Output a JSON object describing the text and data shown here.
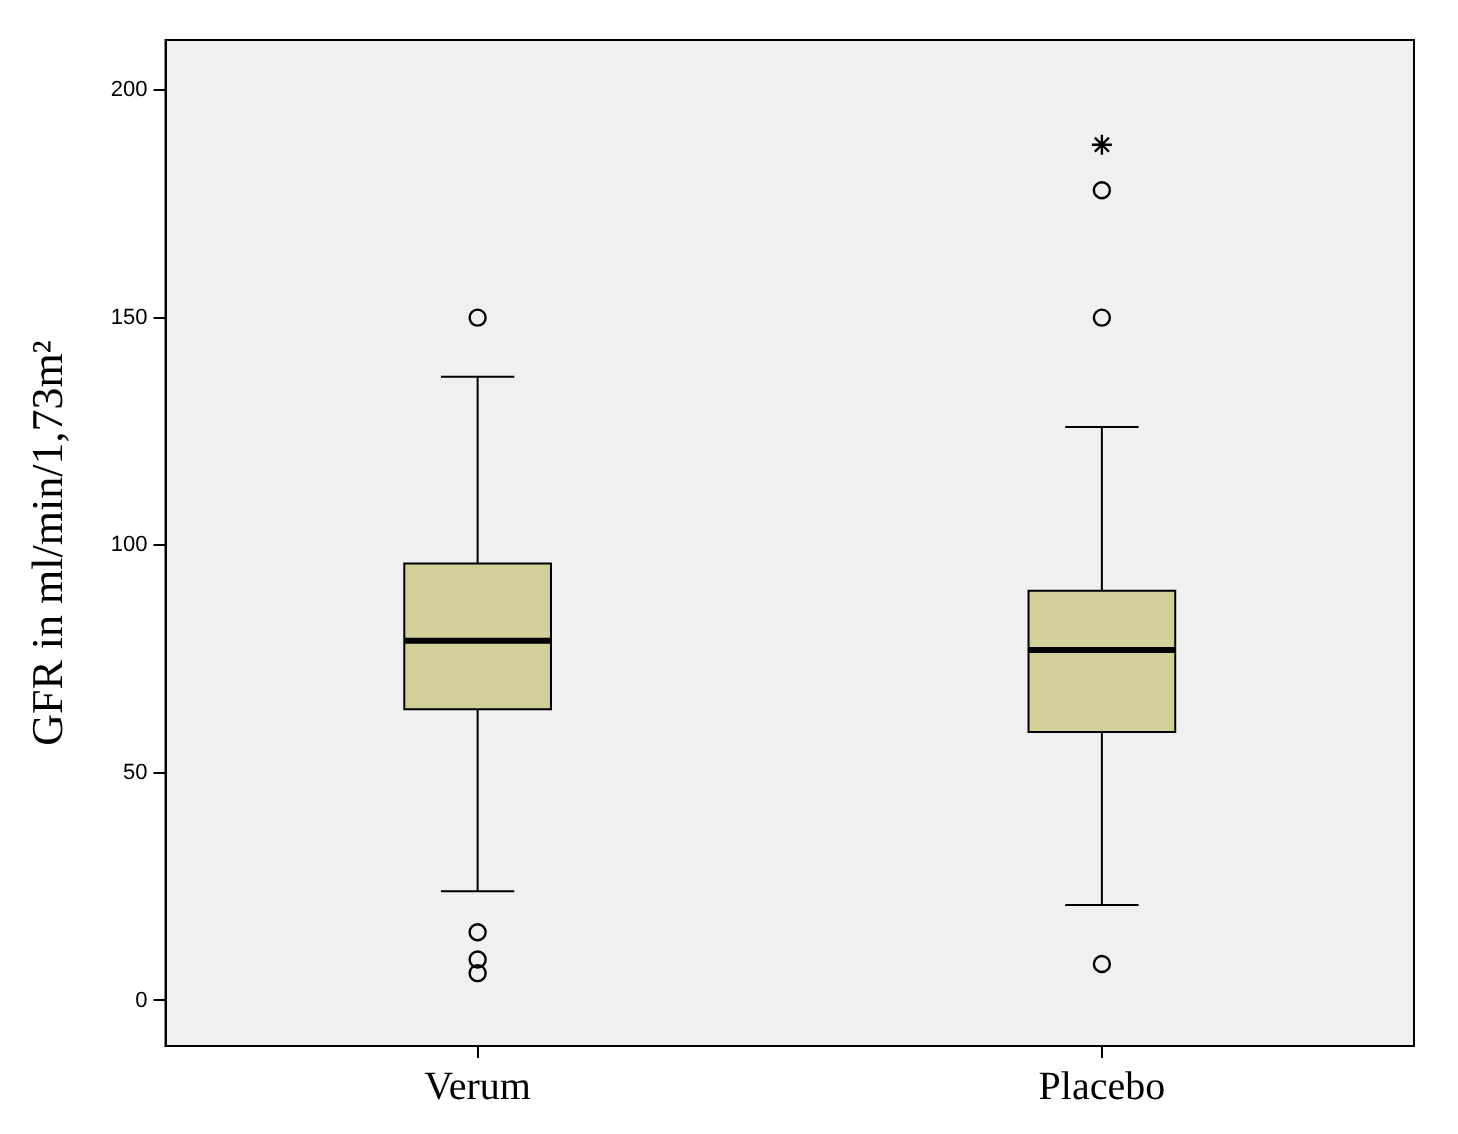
{
  "chart_data": {
    "type": "box",
    "ylabel": "GFR in ml/min/1,73m²",
    "categories": [
      "Verum",
      "Placebo"
    ],
    "series": [
      {
        "color": "#d3cf9a",
        "boxes": [
          {
            "low": 24,
            "q1": 64,
            "median": 79,
            "q3": 96,
            "high": 137,
            "outliers": [
              150,
              15,
              9,
              6
            ]
          },
          {
            "low": 21,
            "q1": 59,
            "median": 77,
            "q3": 90,
            "high": 126,
            "outliers": [
              178,
              150,
              8
            ]
          }
        ]
      },
      {
        "type": "scatter",
        "color": "#000000",
        "marker": "cross",
        "x": [
          "Placebo"
        ],
        "values": [
          188
        ]
      }
    ],
    "ylim": [
      -10,
      211
    ],
    "yticks": [
      0,
      50,
      100,
      150,
      200
    ],
    "grid": false,
    "legend": false,
    "marker": "circle"
  }
}
